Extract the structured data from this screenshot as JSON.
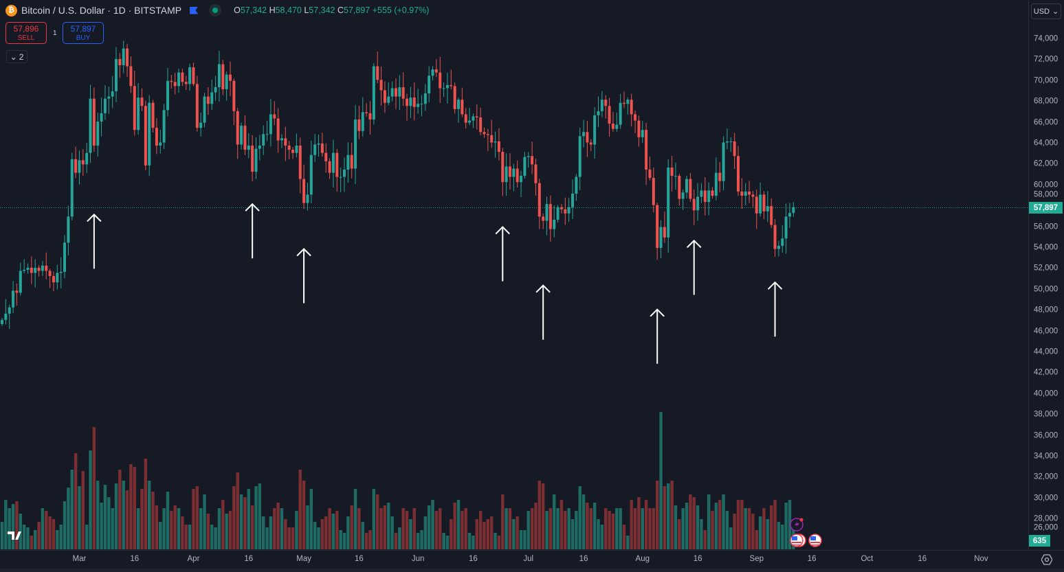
{
  "header": {
    "symbol_icon": "bitcoin-icon",
    "title": "Bitcoin / U.S. Dollar · 1D · BITSTAMP",
    "open_label": "O",
    "open": "57,342",
    "high_label": "H",
    "high": "58,470",
    "low_label": "L",
    "low": "57,342",
    "close_label": "C",
    "close": "57,897",
    "change": "+555 (+0.97%)"
  },
  "trade": {
    "sell_price": "57,896",
    "sell_label": "SELL",
    "qty": "1",
    "buy_price": "57,897",
    "buy_label": "BUY"
  },
  "indicators_toggle": "2",
  "currency": "USD",
  "current_price_label": "57,897",
  "volume_label": "635",
  "colors": {
    "up": "#26a69a",
    "down": "#ef5350",
    "up_vol": "#1d6b63",
    "down_vol": "#7b2f33",
    "bg": "#161a25"
  },
  "chart_data": {
    "type": "candlestick",
    "start_date": "Feb 9",
    "ylim": [
      25000,
      75500
    ],
    "price_ticks": [
      "74,000",
      "72,000",
      "70,000",
      "68,000",
      "66,000",
      "64,000",
      "62,000",
      "60,000",
      "58,000",
      "56,000",
      "54,000",
      "52,000",
      "50,000",
      "48,000",
      "46,000",
      "44,000",
      "42,000",
      "40,000",
      "38,000",
      "36,000",
      "34,000",
      "32,000",
      "30,000",
      "28,000",
      "26,000"
    ],
    "price_tick_values": [
      74000,
      72000,
      70000,
      68000,
      66000,
      64000,
      62000,
      60000,
      58000,
      56000,
      54000,
      52000,
      50000,
      48000,
      46000,
      44000,
      42000,
      40000,
      38000,
      36000,
      34000,
      32000,
      30000,
      28000,
      26000
    ],
    "time_ticks": [
      {
        "label": "Mar",
        "day": 21
      },
      {
        "label": "16",
        "day": 36
      },
      {
        "label": "Apr",
        "day": 52
      },
      {
        "label": "16",
        "day": 67
      },
      {
        "label": "May",
        "day": 82
      },
      {
        "label": "16",
        "day": 97
      },
      {
        "label": "Jun",
        "day": 113
      },
      {
        "label": "16",
        "day": 128
      },
      {
        "label": "Jul",
        "day": 143
      },
      {
        "label": "16",
        "day": 158
      },
      {
        "label": "Aug",
        "day": 174
      },
      {
        "label": "16",
        "day": 189
      },
      {
        "label": "Sep",
        "day": 205
      },
      {
        "label": "16",
        "day": 220
      },
      {
        "label": "Oct",
        "day": 235
      },
      {
        "label": "16",
        "day": 250
      },
      {
        "label": "Nov",
        "day": 266
      }
    ],
    "first_open": 47100,
    "closes": [
      47100,
      47700,
      48300,
      49900,
      49700,
      51800,
      51900,
      52100,
      51600,
      52100,
      51800,
      52300,
      51800,
      51300,
      50700,
      51600,
      51700,
      54500,
      57000,
      62500,
      61200,
      62400,
      62000,
      63100,
      68300,
      63800,
      66100,
      66900,
      68300,
      68500,
      69000,
      72100,
      71500,
      73100,
      71400,
      69500,
      65300,
      68400,
      67600,
      61900,
      67900,
      65500,
      63800,
      64100,
      67200,
      70000,
      69900,
      69500,
      70800,
      69900,
      69700,
      71300,
      69700,
      65500,
      66000,
      68500,
      67800,
      68900,
      69400,
      71600,
      69200,
      70600,
      70000,
      67100,
      63900,
      65700,
      63400,
      63800,
      61300,
      63500,
      63800,
      64900,
      64900,
      66800,
      66400,
      64300,
      64500,
      63800,
      63400,
      63100,
      63800,
      60600,
      58300,
      59100,
      62900,
      63900,
      64000,
      63100,
      62300,
      61200,
      63100,
      60800,
      60800,
      61500,
      62900,
      61600,
      66300,
      65200,
      67000,
      66900,
      66300,
      71400,
      70100,
      69100,
      67900,
      68500,
      69300,
      68500,
      69400,
      68300,
      67600,
      68400,
      67500,
      67800,
      67800,
      68800,
      70500,
      71100,
      70800,
      69300,
      69300,
      69600,
      69500,
      67300,
      68200,
      66800,
      66000,
      66200,
      66600,
      66500,
      65100,
      64900,
      64800,
      64100,
      64200,
      63200,
      60300,
      61800,
      60800,
      61600,
      60300,
      60900,
      62700,
      62800,
      62000,
      60200,
      57000,
      56600,
      58200,
      55800,
      56700,
      57900,
      57700,
      57300,
      57900,
      59200,
      60800,
      64700,
      65100,
      64100,
      63900,
      66700,
      67100,
      68200,
      67600,
      65900,
      65400,
      65800,
      67900,
      67800,
      68200,
      66800,
      66200,
      64600,
      65300,
      61500,
      60700,
      58100,
      54000,
      56000,
      55000,
      61700,
      60900,
      60900,
      58700,
      59300,
      60600,
      58700,
      57600,
      58900,
      59500,
      58400,
      59500,
      59000,
      61200,
      60400,
      64100,
      64200,
      64200,
      62800,
      59400,
      59000,
      59400,
      59100,
      58900,
      57300,
      59100,
      57500,
      58000,
      56200,
      53900,
      54200,
      54900,
      57000,
      57342,
      57897
    ],
    "volumes": [
      20,
      36,
      30,
      33,
      35,
      26,
      18,
      16,
      10,
      14,
      20,
      30,
      28,
      24,
      22,
      14,
      18,
      35,
      45,
      58,
      70,
      46,
      57,
      18,
      72,
      89,
      50,
      34,
      47,
      38,
      30,
      48,
      58,
      50,
      43,
      62,
      60,
      30,
      44,
      66,
      50,
      42,
      32,
      20,
      30,
      42,
      28,
      32,
      30,
      24,
      18,
      18,
      44,
      46,
      30,
      40,
      26,
      18,
      16,
      30,
      36,
      26,
      28,
      46,
      56,
      40,
      38,
      44,
      32,
      46,
      48,
      24,
      16,
      24,
      30,
      34,
      30,
      22,
      16,
      16,
      28,
      58,
      50,
      32,
      44,
      20,
      16,
      22,
      24,
      30,
      26,
      28,
      14,
      12,
      24,
      32,
      44,
      30,
      20,
      12,
      14,
      44,
      40,
      30,
      32,
      34,
      24,
      12,
      16,
      30,
      28,
      22,
      30,
      12,
      14,
      24,
      32,
      36,
      28,
      30,
      12,
      10,
      22,
      34,
      36,
      28,
      30,
      12,
      10,
      22,
      28,
      20,
      22,
      24,
      12,
      10,
      40,
      30,
      30,
      22,
      24,
      14,
      14,
      28,
      30,
      34,
      50,
      48,
      28,
      30,
      40,
      30,
      36,
      28,
      30,
      22,
      28,
      46,
      40,
      34,
      30,
      34,
      22,
      18,
      30,
      28,
      26,
      30,
      30,
      18,
      10,
      36,
      30,
      38,
      30,
      36,
      30,
      30,
      50,
      100,
      46,
      48,
      50,
      32,
      22,
      30,
      34,
      40,
      38,
      32,
      22,
      14,
      40,
      28,
      34,
      36,
      40,
      28,
      16,
      26,
      36,
      36,
      30,
      30,
      26,
      14,
      24,
      30,
      22,
      32,
      36,
      20,
      18,
      34,
      36,
      20
    ],
    "annotations": [
      {
        "type": "arrow-up",
        "day": 25,
        "tip": 57200,
        "tail": 52000
      },
      {
        "type": "arrow-up",
        "day": 68,
        "tip": 58200,
        "tail": 53000
      },
      {
        "type": "arrow-up",
        "day": 82,
        "tip": 53900,
        "tail": 48700
      },
      {
        "type": "arrow-up",
        "day": 136,
        "tip": 56000,
        "tail": 50800
      },
      {
        "type": "arrow-up",
        "day": 147,
        "tip": 50400,
        "tail": 45200
      },
      {
        "type": "arrow-up",
        "day": 178,
        "tip": 48100,
        "tail": 42900
      },
      {
        "type": "arrow-up",
        "day": 188,
        "tip": 54700,
        "tail": 49500
      },
      {
        "type": "arrow-up",
        "day": 210,
        "tip": 50700,
        "tail": 45500
      }
    ]
  }
}
